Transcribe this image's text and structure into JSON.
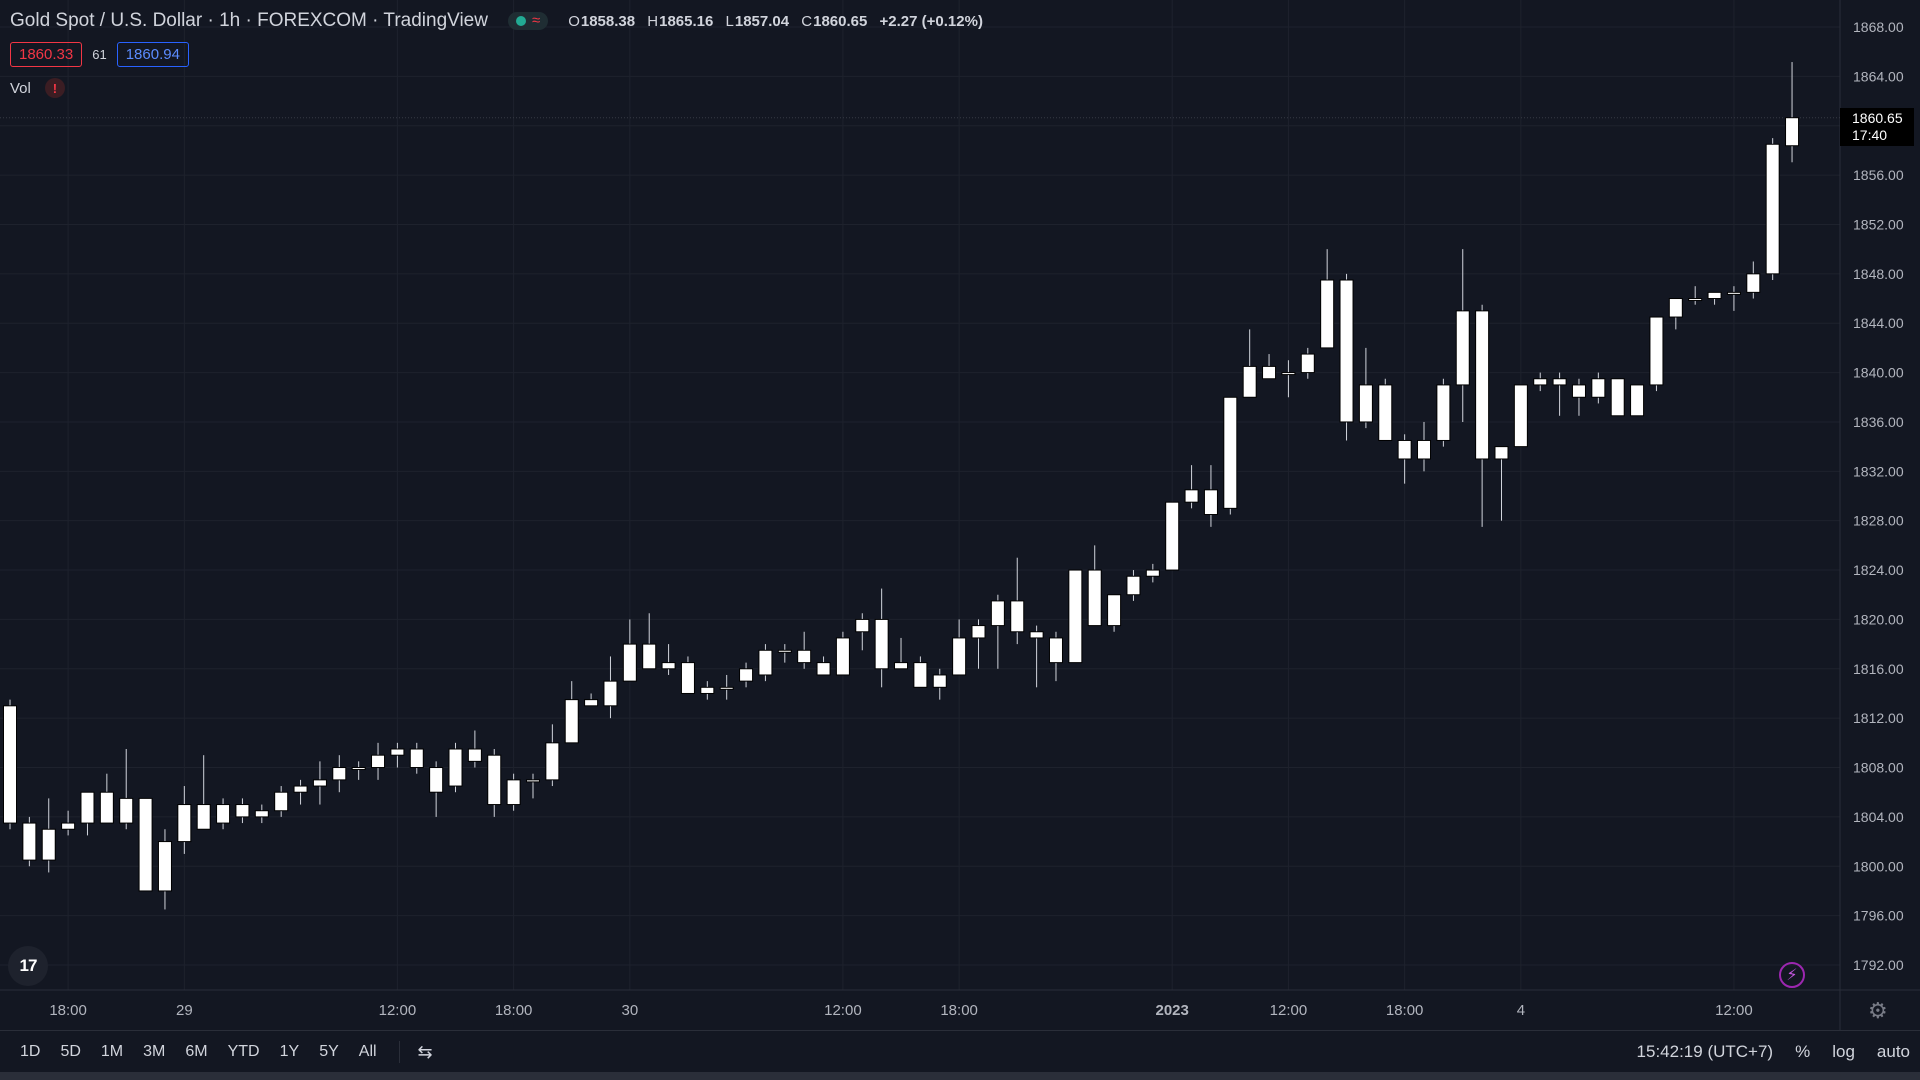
{
  "header": {
    "title": "Gold Spot / U.S. Dollar · 1h · FOREXCOM · TradingView",
    "ohlc": {
      "o_label": "O",
      "o": "1858.38",
      "h_label": "H",
      "h": "1865.16",
      "l_label": "L",
      "l": "1857.04",
      "c_label": "C",
      "c": "1860.65",
      "change": "+2.27 (+0.12%)"
    },
    "bid": "1860.33",
    "spread": "61",
    "ask": "1860.94",
    "volume_label": "Vol",
    "warning_icon": "!"
  },
  "last_price": {
    "value": "1860.65",
    "countdown": "17:40"
  },
  "bottom_bar": {
    "ranges": [
      "1D",
      "5D",
      "1M",
      "3M",
      "6M",
      "YTD",
      "1Y",
      "5Y",
      "All"
    ],
    "time": "15:42:19 (UTC+7)",
    "percent": "%",
    "log": "log",
    "auto": "auto"
  },
  "colors": {
    "background": "#131722",
    "grid": "#1e222d",
    "candle_body_up": "#ffffff",
    "candle_body_down": "#ffffff",
    "candle_border": "#000000",
    "wick": "#d1d4dc"
  },
  "chart_data": {
    "type": "candlestick",
    "title": "Gold Spot / U.S. Dollar",
    "interval": "1h",
    "yaxis": {
      "min": 1790,
      "max": 1870,
      "ticks": [
        1792,
        1796,
        1800,
        1804,
        1808,
        1812,
        1816,
        1820,
        1824,
        1828,
        1832,
        1836,
        1840,
        1844,
        1848,
        1852,
        1856,
        1860,
        1864,
        1868
      ],
      "tick_labels": [
        "1792.00",
        "1796.00",
        "1800.00",
        "1804.00",
        "1808.00",
        "1812.00",
        "1816.00",
        "1820.00",
        "1824.00",
        "1828.00",
        "1832.00",
        "1836.00",
        "1840.00",
        "1844.00",
        "1848.00",
        "1852.00",
        "1856.00",
        "1860.00",
        "1864.00",
        "1868.00"
      ]
    },
    "xaxis": {
      "tick_labels": [
        {
          "label": "18:00",
          "bar": 3
        },
        {
          "label": "29",
          "bar": 9
        },
        {
          "label": "12:00",
          "bar": 20
        },
        {
          "label": "18:00",
          "bar": 26
        },
        {
          "label": "30",
          "bar": 32
        },
        {
          "label": "12:00",
          "bar": 43
        },
        {
          "label": "18:00",
          "bar": 49
        },
        {
          "label": "2023",
          "bar": 60,
          "bold": true
        },
        {
          "label": "12:00",
          "bar": 66
        },
        {
          "label": "18:00",
          "bar": 72
        },
        {
          "label": "4",
          "bar": 78
        },
        {
          "label": "12:00",
          "bar": 89
        }
      ],
      "grid_bars": [
        3,
        9,
        20,
        26,
        32,
        43,
        49,
        60,
        66,
        72,
        78,
        89
      ]
    },
    "candles": [
      {
        "o": 1813,
        "h": 1813.5,
        "l": 1803,
        "c": 1803.5
      },
      {
        "o": 1803.5,
        "h": 1804,
        "l": 1800,
        "c": 1800.5
      },
      {
        "o": 1803,
        "h": 1805.5,
        "l": 1799.5,
        "c": 1800.5
      },
      {
        "o": 1803,
        "h": 1804.5,
        "l": 1802.5,
        "c": 1803.5
      },
      {
        "o": 1803.5,
        "h": 1806,
        "l": 1802.5,
        "c": 1806
      },
      {
        "o": 1806,
        "h": 1807.5,
        "l": 1803.5,
        "c": 1803.5
      },
      {
        "o": 1803.5,
        "h": 1809.5,
        "l": 1803,
        "c": 1805.5
      },
      {
        "o": 1805.5,
        "h": 1805.5,
        "l": 1798,
        "c": 1798
      },
      {
        "o": 1798,
        "h": 1803,
        "l": 1796.5,
        "c": 1802
      },
      {
        "o": 1802,
        "h": 1806.5,
        "l": 1801,
        "c": 1805
      },
      {
        "o": 1805,
        "h": 1809,
        "l": 1803,
        "c": 1803
      },
      {
        "o": 1803.5,
        "h": 1805.5,
        "l": 1803,
        "c": 1805
      },
      {
        "o": 1805,
        "h": 1805.5,
        "l": 1803.5,
        "c": 1804
      },
      {
        "o": 1804,
        "h": 1805,
        "l": 1803.5,
        "c": 1804.5
      },
      {
        "o": 1804.5,
        "h": 1806.5,
        "l": 1804,
        "c": 1806
      },
      {
        "o": 1806,
        "h": 1807,
        "l": 1805,
        "c": 1806.5
      },
      {
        "o": 1806.5,
        "h": 1808.5,
        "l": 1805,
        "c": 1807
      },
      {
        "o": 1807,
        "h": 1809,
        "l": 1806,
        "c": 1808
      },
      {
        "o": 1808,
        "h": 1808.5,
        "l": 1807,
        "c": 1808
      },
      {
        "o": 1808,
        "h": 1810,
        "l": 1807,
        "c": 1809
      },
      {
        "o": 1809,
        "h": 1810,
        "l": 1808,
        "c": 1809.5
      },
      {
        "o": 1809.5,
        "h": 1810,
        "l": 1807.5,
        "c": 1808
      },
      {
        "o": 1808,
        "h": 1808.5,
        "l": 1804,
        "c": 1806
      },
      {
        "o": 1806.5,
        "h": 1810,
        "l": 1806,
        "c": 1809.5
      },
      {
        "o": 1809.5,
        "h": 1811,
        "l": 1808,
        "c": 1808.5
      },
      {
        "o": 1809,
        "h": 1809.5,
        "l": 1804,
        "c": 1805
      },
      {
        "o": 1805,
        "h": 1807.5,
        "l": 1804.5,
        "c": 1807
      },
      {
        "o": 1807,
        "h": 1807.5,
        "l": 1805.5,
        "c": 1807
      },
      {
        "o": 1807,
        "h": 1811.5,
        "l": 1806.5,
        "c": 1810
      },
      {
        "o": 1810,
        "h": 1815,
        "l": 1810,
        "c": 1813.5
      },
      {
        "o": 1813.5,
        "h": 1814,
        "l": 1813,
        "c": 1813
      },
      {
        "o": 1813,
        "h": 1817,
        "l": 1812,
        "c": 1815
      },
      {
        "o": 1815,
        "h": 1820,
        "l": 1815,
        "c": 1818
      },
      {
        "o": 1818,
        "h": 1820.5,
        "l": 1816,
        "c": 1816
      },
      {
        "o": 1816,
        "h": 1818,
        "l": 1815.5,
        "c": 1816.5
      },
      {
        "o": 1816.5,
        "h": 1817,
        "l": 1814,
        "c": 1814
      },
      {
        "o": 1814,
        "h": 1815,
        "l": 1813.5,
        "c": 1814.5
      },
      {
        "o": 1814.5,
        "h": 1815.5,
        "l": 1813.5,
        "c": 1814.5
      },
      {
        "o": 1815,
        "h": 1816.5,
        "l": 1814.5,
        "c": 1816
      },
      {
        "o": 1815.5,
        "h": 1818,
        "l": 1815,
        "c": 1817.5
      },
      {
        "o": 1817.5,
        "h": 1818,
        "l": 1816.5,
        "c": 1817.5
      },
      {
        "o": 1817.5,
        "h": 1819,
        "l": 1816,
        "c": 1816.5
      },
      {
        "o": 1816.5,
        "h": 1817,
        "l": 1815.5,
        "c": 1815.5
      },
      {
        "o": 1815.5,
        "h": 1819,
        "l": 1815.5,
        "c": 1818.5
      },
      {
        "o": 1819,
        "h": 1820.5,
        "l": 1817.5,
        "c": 1820
      },
      {
        "o": 1820,
        "h": 1822.5,
        "l": 1814.5,
        "c": 1816
      },
      {
        "o": 1816.5,
        "h": 1818.5,
        "l": 1816,
        "c": 1816
      },
      {
        "o": 1816.5,
        "h": 1817,
        "l": 1814.5,
        "c": 1814.5
      },
      {
        "o": 1815.5,
        "h": 1816,
        "l": 1813.5,
        "c": 1814.5
      },
      {
        "o": 1815.5,
        "h": 1820,
        "l": 1815.5,
        "c": 1818.5
      },
      {
        "o": 1818.5,
        "h": 1820,
        "l": 1816,
        "c": 1819.5
      },
      {
        "o": 1819.5,
        "h": 1822,
        "l": 1816,
        "c": 1821.5
      },
      {
        "o": 1821.5,
        "h": 1825,
        "l": 1818,
        "c": 1819
      },
      {
        "o": 1819,
        "h": 1819.5,
        "l": 1814.5,
        "c": 1818.5
      },
      {
        "o": 1818.5,
        "h": 1819,
        "l": 1815,
        "c": 1816.5
      },
      {
        "o": 1816.5,
        "h": 1824,
        "l": 1816.5,
        "c": 1824
      },
      {
        "o": 1824,
        "h": 1826,
        "l": 1819.5,
        "c": 1819.5
      },
      {
        "o": 1819.5,
        "h": 1822,
        "l": 1819,
        "c": 1822
      },
      {
        "o": 1822,
        "h": 1824,
        "l": 1821.5,
        "c": 1823.5
      },
      {
        "o": 1823.5,
        "h": 1824.5,
        "l": 1823,
        "c": 1824
      },
      {
        "o": 1824,
        "h": 1829.5,
        "l": 1824,
        "c": 1829.5
      },
      {
        "o": 1829.5,
        "h": 1832.5,
        "l": 1829,
        "c": 1830.5
      },
      {
        "o": 1830.5,
        "h": 1832.5,
        "l": 1827.5,
        "c": 1828.5
      },
      {
        "o": 1829,
        "h": 1838,
        "l": 1828.5,
        "c": 1838
      },
      {
        "o": 1838,
        "h": 1843.5,
        "l": 1838,
        "c": 1840.5
      },
      {
        "o": 1840.5,
        "h": 1841.5,
        "l": 1839.5,
        "c": 1839.5
      },
      {
        "o": 1840,
        "h": 1841,
        "l": 1838,
        "c": 1840
      },
      {
        "o": 1840,
        "h": 1842,
        "l": 1839.5,
        "c": 1841.5
      },
      {
        "o": 1842,
        "h": 1850,
        "l": 1842,
        "c": 1847.5
      },
      {
        "o": 1847.5,
        "h": 1848,
        "l": 1834.5,
        "c": 1836
      },
      {
        "o": 1836,
        "h": 1842,
        "l": 1835.5,
        "c": 1839
      },
      {
        "o": 1839,
        "h": 1839.5,
        "l": 1834.5,
        "c": 1834.5
      },
      {
        "o": 1834.5,
        "h": 1835,
        "l": 1831,
        "c": 1833
      },
      {
        "o": 1833,
        "h": 1836,
        "l": 1832,
        "c": 1834.5
      },
      {
        "o": 1834.5,
        "h": 1839.5,
        "l": 1834,
        "c": 1839
      },
      {
        "o": 1839,
        "h": 1850,
        "l": 1836,
        "c": 1845
      },
      {
        "o": 1845,
        "h": 1845.5,
        "l": 1827.5,
        "c": 1833
      },
      {
        "o": 1833,
        "h": 1834,
        "l": 1828,
        "c": 1834
      },
      {
        "o": 1834,
        "h": 1839,
        "l": 1834,
        "c": 1839
      },
      {
        "o": 1839,
        "h": 1840,
        "l": 1838.5,
        "c": 1839.5
      },
      {
        "o": 1839.5,
        "h": 1840,
        "l": 1836.5,
        "c": 1839
      },
      {
        "o": 1839,
        "h": 1839.5,
        "l": 1836.5,
        "c": 1838
      },
      {
        "o": 1838,
        "h": 1840,
        "l": 1837.5,
        "c": 1839.5
      },
      {
        "o": 1839.5,
        "h": 1839.5,
        "l": 1836.5,
        "c": 1836.5
      },
      {
        "o": 1836.5,
        "h": 1839,
        "l": 1836.5,
        "c": 1839
      },
      {
        "o": 1839,
        "h": 1844.5,
        "l": 1838.5,
        "c": 1844.5
      },
      {
        "o": 1844.5,
        "h": 1846,
        "l": 1843.5,
        "c": 1846
      },
      {
        "o": 1846,
        "h": 1847,
        "l": 1845.5,
        "c": 1846
      },
      {
        "o": 1846,
        "h": 1846.5,
        "l": 1845.5,
        "c": 1846.5
      },
      {
        "o": 1846.5,
        "h": 1847,
        "l": 1845,
        "c": 1846.5
      },
      {
        "o": 1846.5,
        "h": 1849,
        "l": 1846,
        "c": 1848
      },
      {
        "o": 1848,
        "h": 1859,
        "l": 1847.5,
        "c": 1858.5
      },
      {
        "o": 1858.38,
        "h": 1865.16,
        "l": 1857.04,
        "c": 1860.65
      }
    ]
  }
}
